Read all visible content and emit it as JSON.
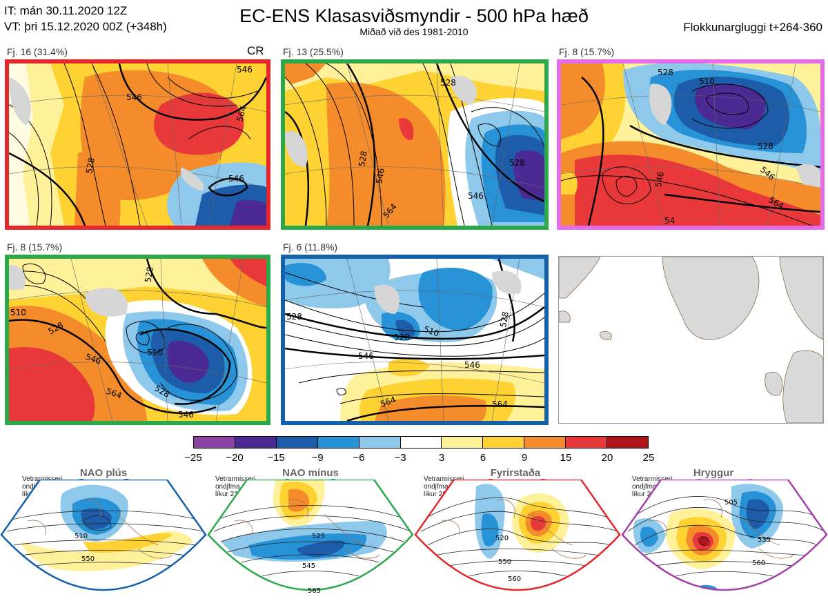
{
  "header": {
    "it_line": "IT: mán 30.11.2020 12Z",
    "vt_line": "VT: þri 15.12.2020 00Z  (+348h)",
    "title": "EC-ENS Klasasviðsmyndir - 500 hPa hæð",
    "subtitle": "Miðað við des 1981-2010",
    "window": "Flokkunargluggi t+264-360"
  },
  "clusters": [
    {
      "label": "Fj. 16 (31.4%)",
      "frame_color": "#e5262a",
      "marker": "CR",
      "contour_labels": [
        "546",
        "528",
        "564",
        "546",
        "546"
      ]
    },
    {
      "label": "Fj. 13 (25.5%)",
      "frame_color": "#2aa84a",
      "marker": "",
      "contour_labels": [
        "528",
        "528",
        "546",
        "528",
        "546",
        "564"
      ]
    },
    {
      "label": "Fj. 8 (15.7%)",
      "frame_color": "#e66be8",
      "marker": "",
      "contour_labels": [
        "528",
        "510",
        "528",
        "546",
        "546",
        "564",
        "54"
      ]
    },
    {
      "label": "Fj. 8 (15.7%)",
      "frame_color": "#2aa84a",
      "marker": "",
      "contour_labels": [
        "510",
        "528",
        "546",
        "528",
        "510",
        "564",
        "528",
        "546"
      ]
    },
    {
      "label": "Fj. 6 (11.8%)",
      "frame_color": "#1560ab",
      "marker": "",
      "contour_labels": [
        "528",
        "510",
        "528",
        "546",
        "546",
        "528",
        "564",
        "564"
      ]
    }
  ],
  "colorbar": {
    "colors": [
      "#8b44a4",
      "#4b2a93",
      "#1d5ca8",
      "#2792d6",
      "#8ec9ec",
      "#ffffff",
      "#fff19a",
      "#fed232",
      "#f48c2c",
      "#e8383a",
      "#b0151a"
    ],
    "ticks": [
      "−25",
      "−20",
      "−15",
      "−9",
      "−6",
      "−3",
      "3",
      "6",
      "9",
      "15",
      "20",
      "25"
    ]
  },
  "regimes": [
    {
      "name": "NAO plús",
      "note_lines": [
        "Vetrarmisseri",
        "ondjfma",
        "líkur 32,3%"
      ],
      "color": "#1560ab",
      "contour_labels": [
        "510",
        "550"
      ]
    },
    {
      "name": "NAO mínus",
      "note_lines": [
        "Vetrarmisseri",
        "ondjfma",
        "líkur 21,4%"
      ],
      "color": "#2aa84a",
      "contour_labels": [
        "525",
        "545",
        "565"
      ]
    },
    {
      "name": "Fyrirstaða",
      "note_lines": [
        "Vetrarmisseri",
        "ondjfma",
        "líkur 26,1%"
      ],
      "color": "#e5262a",
      "contour_labels": [
        "520",
        "550",
        "560"
      ]
    },
    {
      "name": "Hryggur",
      "note_lines": [
        "Vetrarmisseri",
        "ondjfma",
        "líkur 20,2%"
      ],
      "color": "#a23fa8",
      "contour_labels": [
        "505",
        "535",
        "560"
      ]
    }
  ]
}
